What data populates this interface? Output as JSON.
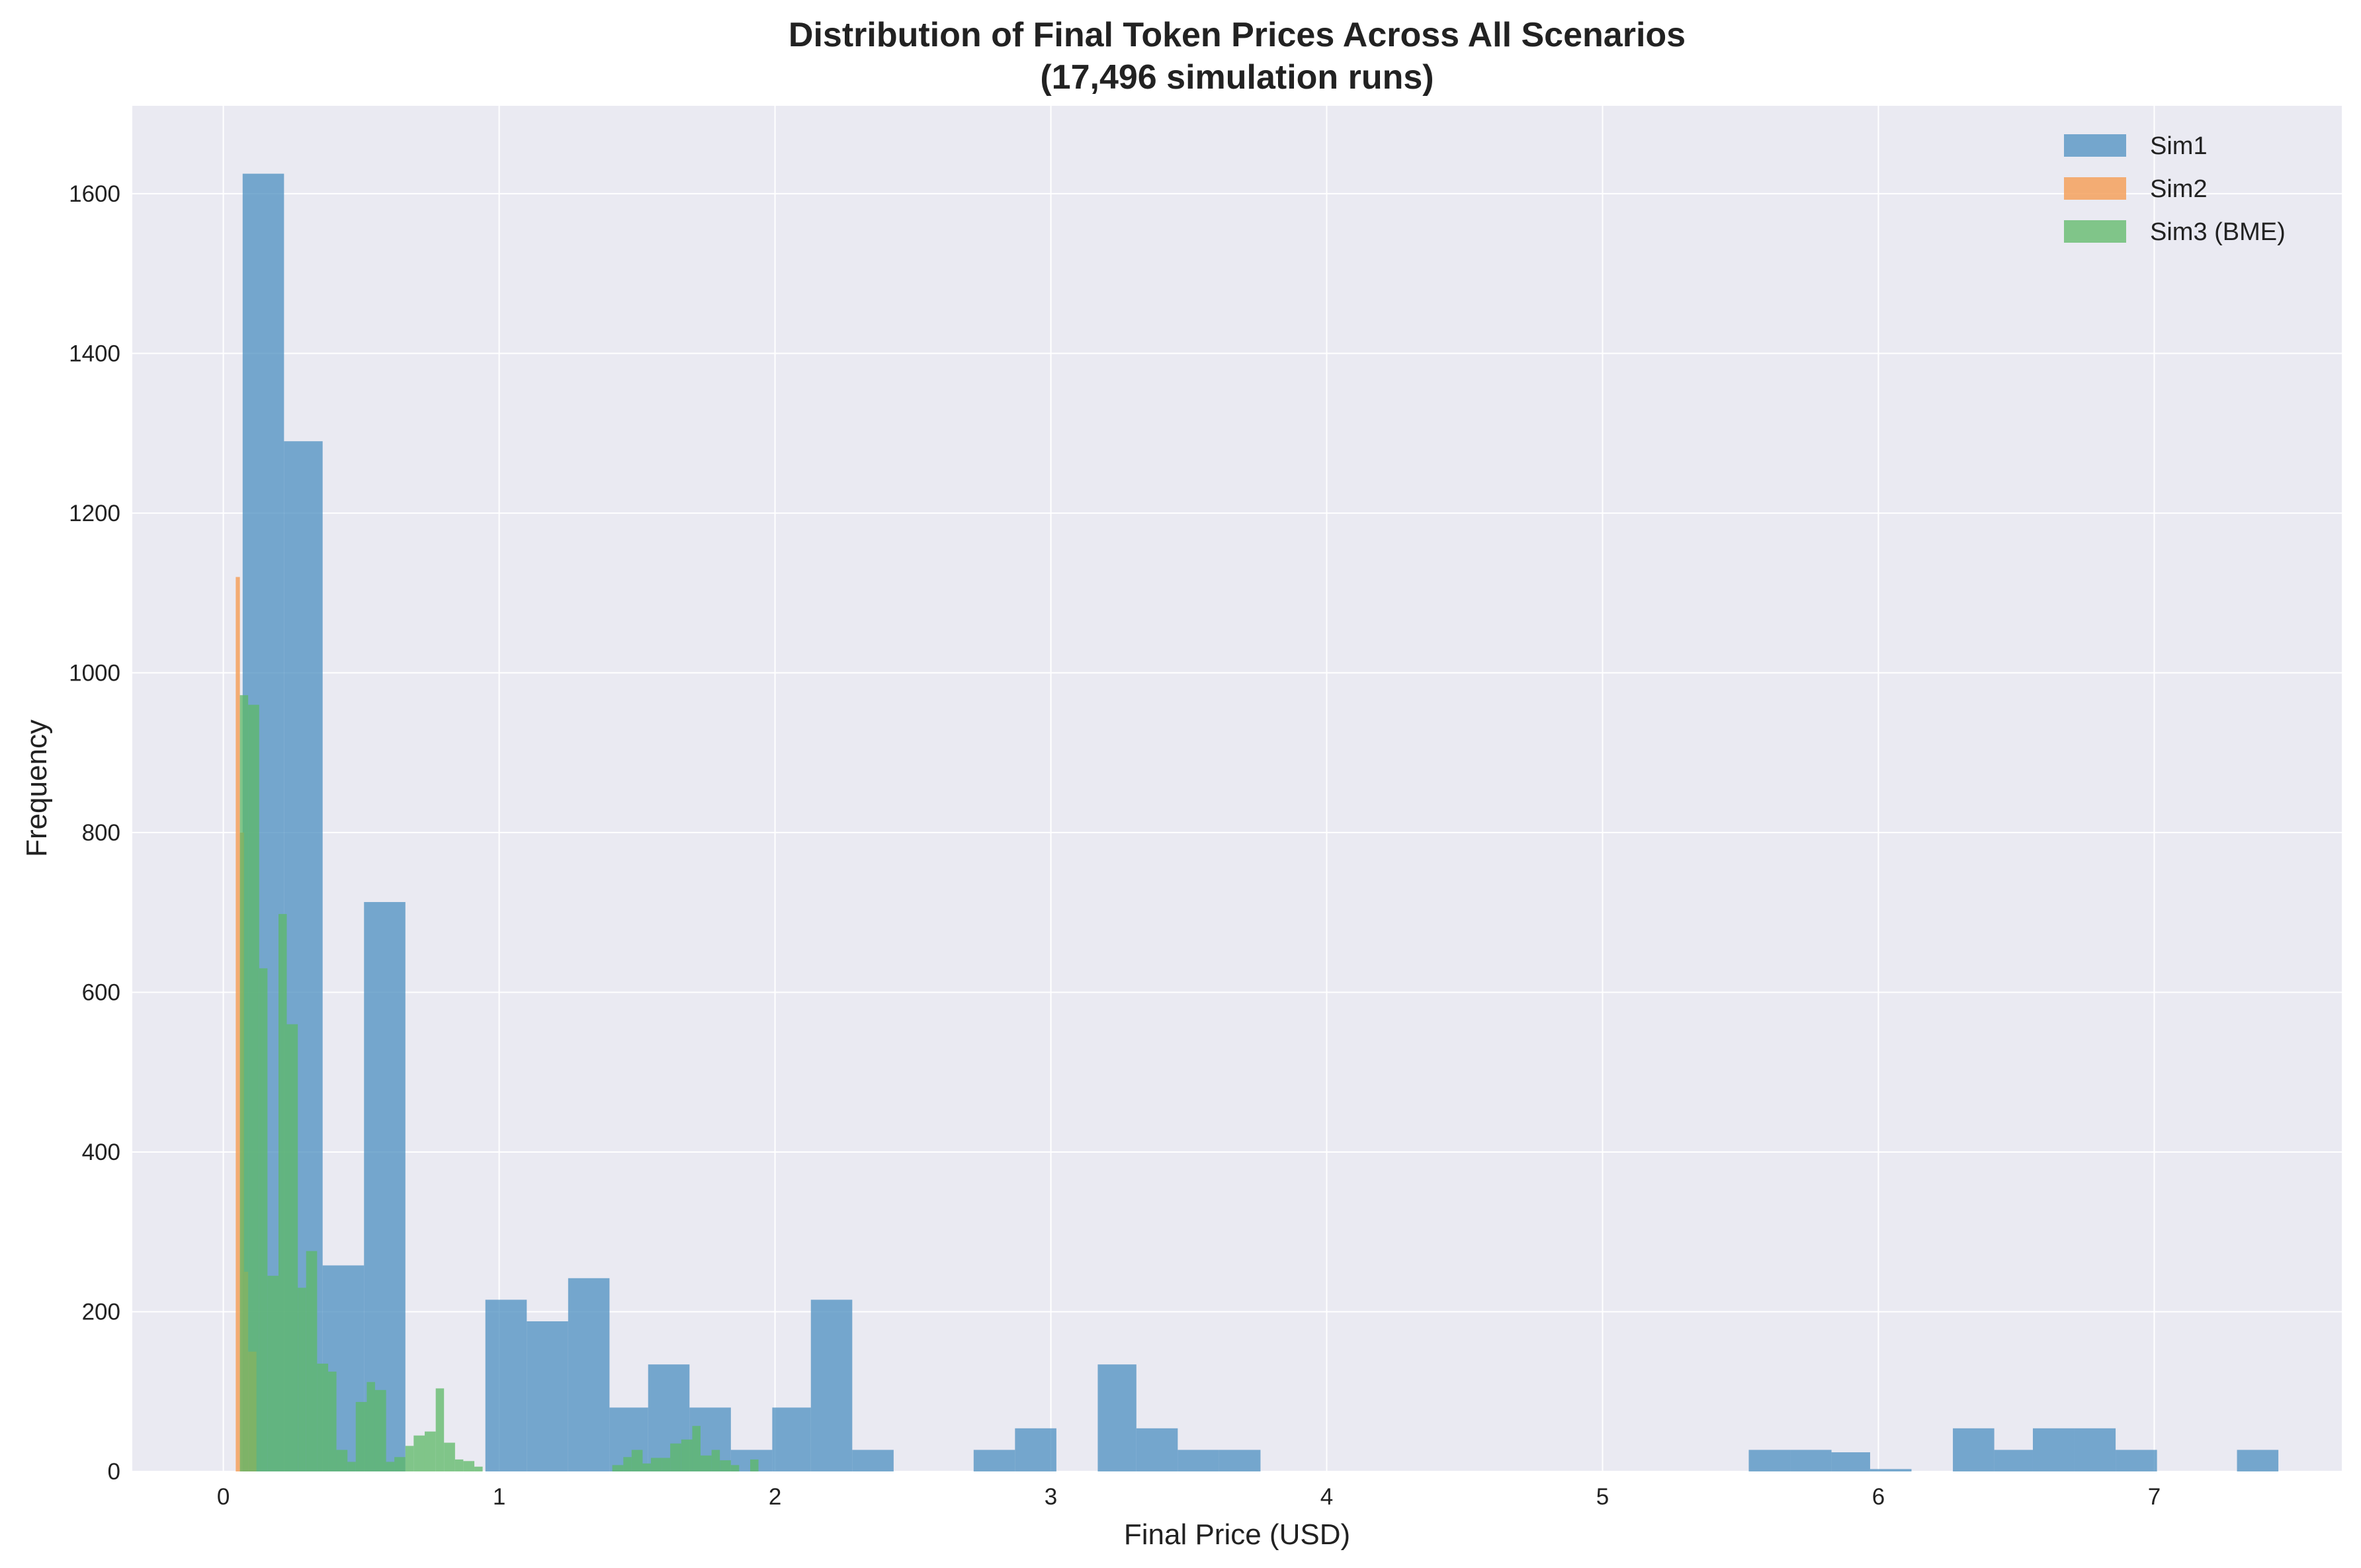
{
  "chart_data": {
    "type": "histogram",
    "title": "Distribution of Final Token Prices Across All Scenarios",
    "subtitle": "(17,496 simulation runs)",
    "xlabel": "Final Price (USD)",
    "ylabel": "Frequency",
    "xlim": [
      -0.33,
      7.68
    ],
    "ylim": [
      0,
      1710
    ],
    "x_ticks": [
      "0",
      "1",
      "2",
      "3",
      "4",
      "5",
      "6",
      "7"
    ],
    "y_ticks": [
      "0",
      "200",
      "400",
      "600",
      "800",
      "1000",
      "1200",
      "1400",
      "1600"
    ],
    "grid": true,
    "legend_position": "top-right",
    "series": [
      {
        "name": "Sim1",
        "color": "#4C8FC0",
        "opacity": 0.75,
        "bins": [
          [
            0.07,
            0.22,
            1625
          ],
          [
            0.22,
            0.36,
            1290
          ],
          [
            0.36,
            0.51,
            258
          ],
          [
            0.51,
            0.66,
            713
          ],
          [
            0.66,
            0.95,
            0
          ],
          [
            0.95,
            1.1,
            215
          ],
          [
            1.1,
            1.25,
            188
          ],
          [
            1.25,
            1.4,
            242
          ],
          [
            1.4,
            1.54,
            80
          ],
          [
            1.54,
            1.69,
            134
          ],
          [
            1.69,
            1.84,
            80
          ],
          [
            1.84,
            1.99,
            27
          ],
          [
            1.99,
            2.13,
            80
          ],
          [
            2.13,
            2.28,
            215
          ],
          [
            2.28,
            2.43,
            27
          ],
          [
            2.43,
            2.72,
            0
          ],
          [
            2.72,
            2.87,
            27
          ],
          [
            2.87,
            3.02,
            54
          ],
          [
            3.02,
            3.17,
            0
          ],
          [
            3.17,
            3.31,
            134
          ],
          [
            3.31,
            3.46,
            54
          ],
          [
            3.46,
            3.61,
            27
          ],
          [
            3.61,
            3.76,
            27
          ],
          [
            5.53,
            5.68,
            27
          ],
          [
            5.68,
            5.83,
            27
          ],
          [
            5.83,
            5.97,
            24
          ],
          [
            5.97,
            6.12,
            3
          ],
          [
            6.27,
            6.42,
            54
          ],
          [
            6.42,
            6.56,
            27
          ],
          [
            6.56,
            6.71,
            54
          ],
          [
            6.71,
            6.86,
            54
          ],
          [
            6.86,
            7.01,
            27
          ],
          [
            7.3,
            7.45,
            27
          ]
        ]
      },
      {
        "name": "Sim2",
        "color": "#F4A15D",
        "opacity": 0.85,
        "bins": [
          [
            0.045,
            0.06,
            1120
          ],
          [
            0.06,
            0.075,
            800
          ],
          [
            0.075,
            0.09,
            250
          ],
          [
            0.09,
            0.12,
            150
          ]
        ]
      },
      {
        "name": "Sim3 (BME)",
        "color": "#5CB866",
        "opacity": 0.75,
        "bins": [
          [
            0.06,
            0.09,
            972
          ],
          [
            0.09,
            0.13,
            960
          ],
          [
            0.13,
            0.16,
            630
          ],
          [
            0.16,
            0.2,
            245
          ],
          [
            0.2,
            0.23,
            698
          ],
          [
            0.23,
            0.27,
            560
          ],
          [
            0.27,
            0.3,
            230
          ],
          [
            0.3,
            0.34,
            276
          ],
          [
            0.34,
            0.38,
            135
          ],
          [
            0.38,
            0.41,
            125
          ],
          [
            0.41,
            0.45,
            27
          ],
          [
            0.45,
            0.48,
            12
          ],
          [
            0.48,
            0.52,
            87
          ],
          [
            0.52,
            0.55,
            112
          ],
          [
            0.55,
            0.59,
            102
          ],
          [
            0.59,
            0.62,
            12
          ],
          [
            0.62,
            0.66,
            18
          ],
          [
            0.66,
            0.69,
            32
          ],
          [
            0.69,
            0.73,
            45
          ],
          [
            0.73,
            0.77,
            50
          ],
          [
            0.77,
            0.8,
            104
          ],
          [
            0.8,
            0.84,
            36
          ],
          [
            0.84,
            0.87,
            15
          ],
          [
            0.87,
            0.91,
            13
          ],
          [
            0.91,
            0.94,
            6
          ],
          [
            1.41,
            1.45,
            8
          ],
          [
            1.45,
            1.48,
            18
          ],
          [
            1.48,
            1.52,
            27
          ],
          [
            1.52,
            1.55,
            10
          ],
          [
            1.55,
            1.59,
            17
          ],
          [
            1.59,
            1.62,
            17
          ],
          [
            1.62,
            1.66,
            35
          ],
          [
            1.66,
            1.7,
            40
          ],
          [
            1.7,
            1.73,
            57
          ],
          [
            1.73,
            1.77,
            20
          ],
          [
            1.77,
            1.8,
            27
          ],
          [
            1.8,
            1.84,
            14
          ],
          [
            1.84,
            1.87,
            8
          ],
          [
            1.91,
            1.94,
            15
          ]
        ]
      }
    ]
  }
}
